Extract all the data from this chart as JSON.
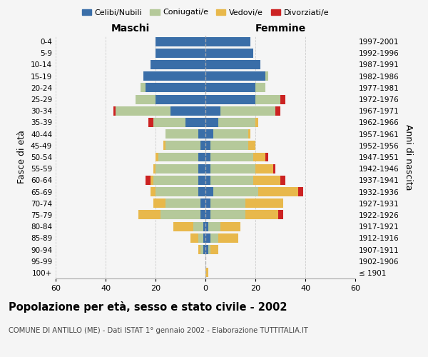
{
  "age_groups": [
    "100+",
    "95-99",
    "90-94",
    "85-89",
    "80-84",
    "75-79",
    "70-74",
    "65-69",
    "60-64",
    "55-59",
    "50-54",
    "45-49",
    "40-44",
    "35-39",
    "30-34",
    "25-29",
    "20-24",
    "15-19",
    "10-14",
    "5-9",
    "0-4"
  ],
  "birth_years": [
    "≤ 1901",
    "1902-1906",
    "1907-1911",
    "1912-1916",
    "1917-1921",
    "1922-1926",
    "1927-1931",
    "1932-1936",
    "1937-1941",
    "1942-1946",
    "1947-1951",
    "1952-1956",
    "1957-1961",
    "1962-1966",
    "1967-1971",
    "1972-1976",
    "1977-1981",
    "1982-1986",
    "1987-1991",
    "1992-1996",
    "1997-2001"
  ],
  "male": {
    "celibe": [
      0,
      0,
      1,
      1,
      1,
      2,
      2,
      3,
      3,
      3,
      3,
      2,
      3,
      8,
      14,
      20,
      24,
      25,
      22,
      20,
      20
    ],
    "coniugato": [
      0,
      0,
      1,
      2,
      4,
      16,
      14,
      17,
      18,
      17,
      16,
      14,
      13,
      13,
      22,
      8,
      2,
      0,
      0,
      0,
      0
    ],
    "vedovo": [
      0,
      0,
      1,
      3,
      8,
      9,
      5,
      2,
      1,
      1,
      1,
      1,
      0,
      0,
      0,
      0,
      0,
      0,
      0,
      0,
      0
    ],
    "divorziato": [
      0,
      0,
      0,
      0,
      0,
      0,
      0,
      0,
      2,
      0,
      0,
      0,
      0,
      2,
      1,
      0,
      0,
      0,
      0,
      0,
      0
    ]
  },
  "female": {
    "nubile": [
      0,
      0,
      1,
      2,
      1,
      2,
      2,
      3,
      2,
      2,
      2,
      2,
      3,
      5,
      6,
      20,
      20,
      24,
      22,
      19,
      18
    ],
    "coniugata": [
      0,
      0,
      1,
      3,
      5,
      14,
      14,
      18,
      17,
      18,
      17,
      15,
      14,
      15,
      22,
      10,
      4,
      1,
      0,
      0,
      0
    ],
    "vedova": [
      1,
      0,
      3,
      8,
      8,
      13,
      15,
      16,
      11,
      7,
      5,
      3,
      1,
      1,
      0,
      0,
      0,
      0,
      0,
      0,
      0
    ],
    "divorziata": [
      0,
      0,
      0,
      0,
      0,
      2,
      0,
      2,
      2,
      1,
      1,
      0,
      0,
      0,
      2,
      2,
      0,
      0,
      0,
      0,
      0
    ]
  },
  "colors": {
    "celibe": "#3a6ea8",
    "coniugato": "#b5c99a",
    "vedovo": "#e8b84b",
    "divorziato": "#cc2222"
  },
  "title": "Popolazione per età, sesso e stato civile - 2002",
  "subtitle": "COMUNE DI ANTILLO (ME) - Dati ISTAT 1° gennaio 2002 - Elaborazione TUTTITALIA.IT",
  "xlabel_left": "Maschi",
  "xlabel_right": "Femmine",
  "ylabel_left": "Fasce di età",
  "ylabel_right": "Anni di nascita",
  "xlim": 60,
  "legend_labels": [
    "Celibi/Nubili",
    "Coniugati/e",
    "Vedovi/e",
    "Divorziati/e"
  ],
  "background_color": "#f5f5f5"
}
